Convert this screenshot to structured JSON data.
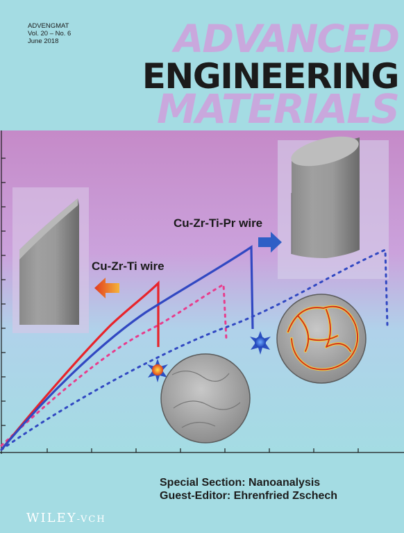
{
  "journal": {
    "code": "ADVENGMAT",
    "volume": "Vol. 20 – No. 6",
    "date": "June 2018",
    "title_line1": "ADVANCED",
    "title_line2": "ENGINEERING",
    "title_line3": "MATERIALS"
  },
  "figure": {
    "label_alloy1": "Cu-Zr-Ti wire",
    "label_alloy2": "Cu-Zr-Ti-Pr wire",
    "colors": {
      "alloy1": "#e8232a",
      "alloy1_dotted": "#e83c8c",
      "alloy2": "#3148c2",
      "alloy2_dotted": "#3148c2"
    }
  },
  "section": {
    "line1": "Special Section: Nanoanalysis",
    "line2": "Guest-Editor: Ehrenfried Zschech"
  },
  "publisher": {
    "name": "WILEY",
    "suffix": "-VCH"
  }
}
